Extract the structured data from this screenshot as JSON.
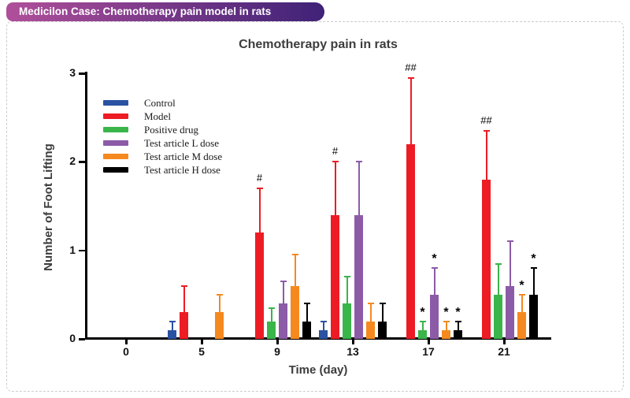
{
  "header": {
    "badge_label": "Medicilon Case: Chemotherapy pain model in rats",
    "badge_gradient_from": "#b04f9a",
    "badge_gradient_to": "#3f2277"
  },
  "chart_data": {
    "type": "bar",
    "title": "Chemotherapy pain in rats",
    "xlabel": "Time (day)",
    "ylabel": "Number of Foot Lifting",
    "ylim": [
      0,
      3
    ],
    "yticks": [
      "0",
      "1",
      "2",
      "3"
    ],
    "categories": [
      "0",
      "5",
      "9",
      "13",
      "17",
      "21"
    ],
    "grid": false,
    "legend_position": "upper-left",
    "series": [
      {
        "name": "Control",
        "color": "#2a52a2",
        "values": [
          0,
          0.1,
          0,
          0.1,
          0,
          0
        ],
        "error_upper": [
          0,
          0.2,
          0,
          0.2,
          0,
          0
        ],
        "annotations": [
          "",
          "",
          "",
          "",
          "",
          ""
        ]
      },
      {
        "name": "Model",
        "color": "#ed1c24",
        "values": [
          0,
          0.3,
          1.2,
          1.4,
          2.2,
          1.8
        ],
        "error_upper": [
          0,
          0.6,
          1.7,
          2.0,
          2.95,
          2.35
        ],
        "annotations": [
          "",
          "",
          "#",
          "#",
          "##",
          "##"
        ]
      },
      {
        "name": "Positive drug",
        "color": "#39b54a",
        "values": [
          0,
          0,
          0.2,
          0.4,
          0.1,
          0.5
        ],
        "error_upper": [
          0,
          0,
          0.35,
          0.7,
          0.2,
          0.85
        ],
        "annotations": [
          "",
          "",
          "",
          "",
          "*",
          ""
        ]
      },
      {
        "name": "Test article L dose",
        "color": "#8c5ba8",
        "values": [
          0,
          0,
          0.4,
          1.4,
          0.5,
          0.6
        ],
        "error_upper": [
          0,
          0,
          0.65,
          2.0,
          0.8,
          1.1
        ],
        "annotations": [
          "",
          "",
          "",
          "",
          "*",
          ""
        ]
      },
      {
        "name": "Test article M dose",
        "color": "#f5891f",
        "values": [
          0,
          0.3,
          0.6,
          0.2,
          0.1,
          0.3
        ],
        "error_upper": [
          0,
          0.5,
          0.95,
          0.4,
          0.2,
          0.5
        ],
        "annotations": [
          "",
          "",
          "",
          "",
          "*",
          "*"
        ]
      },
      {
        "name": "Test article H dose",
        "color": "#000000",
        "values": [
          0,
          0,
          0.2,
          0.2,
          0.1,
          0.5
        ],
        "error_upper": [
          0,
          0,
          0.4,
          0.4,
          0.2,
          0.8
        ],
        "annotations": [
          "",
          "",
          "",
          "",
          "*",
          "*"
        ]
      }
    ]
  }
}
